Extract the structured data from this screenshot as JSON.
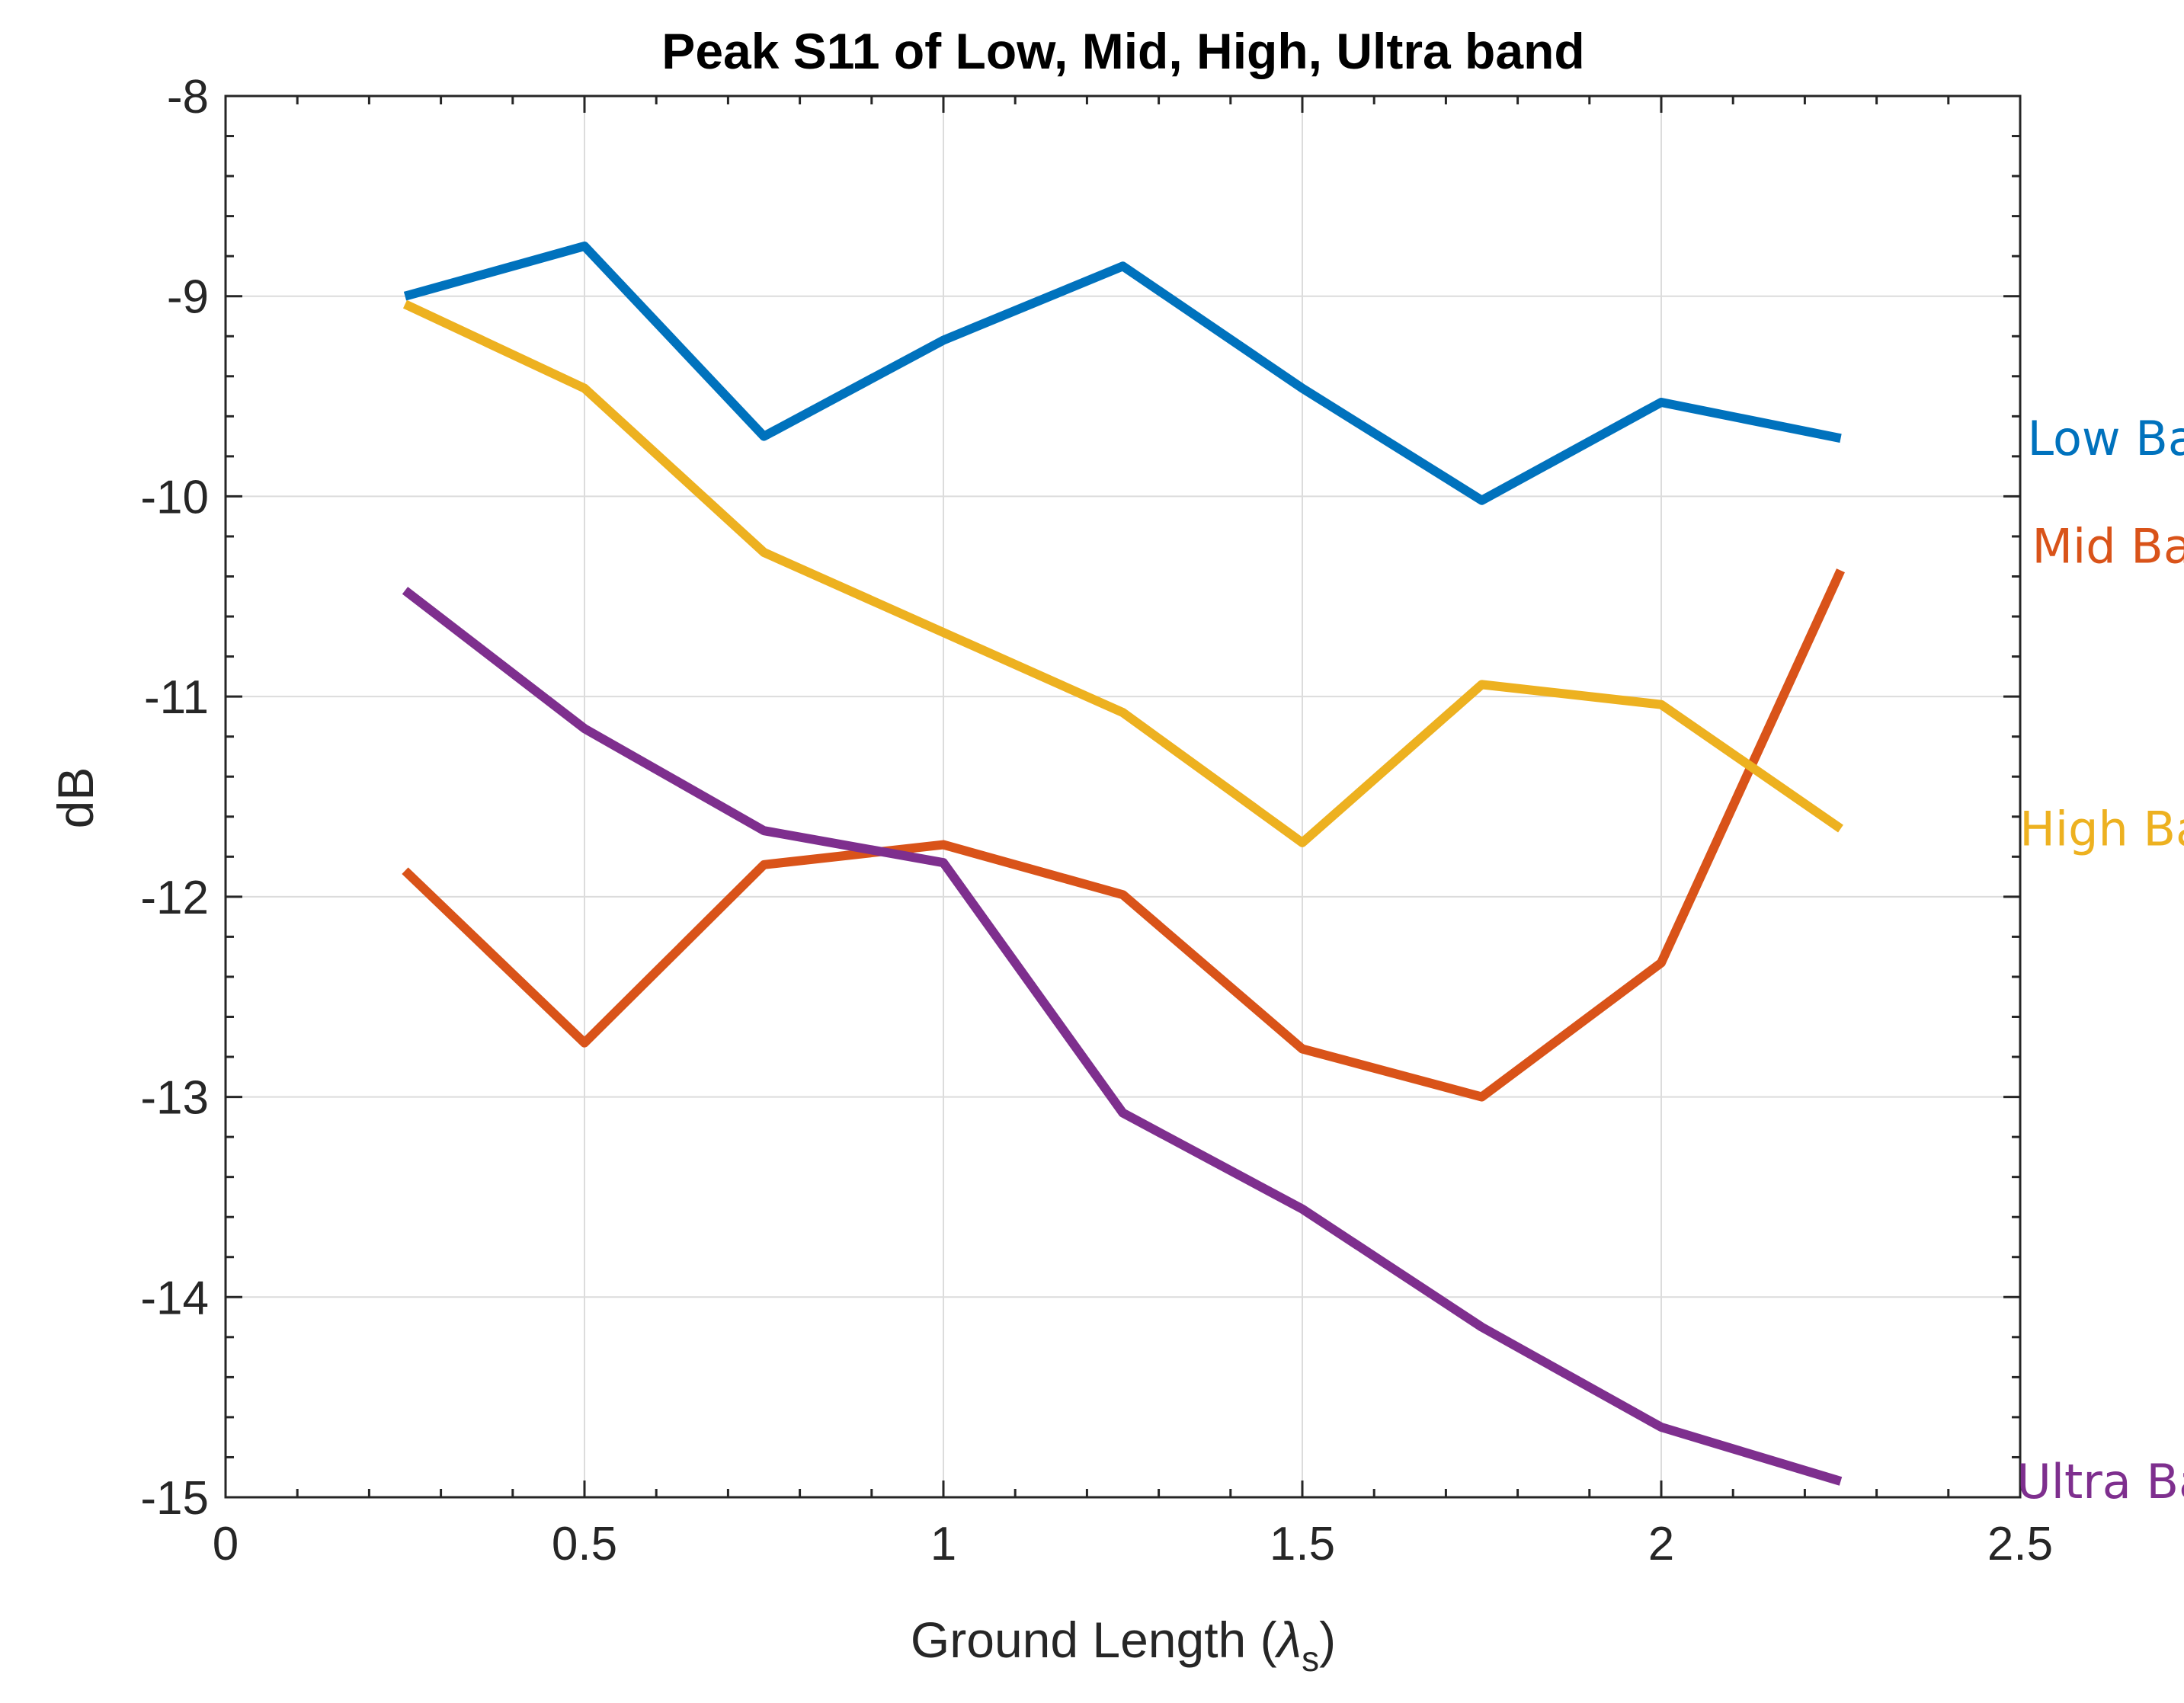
{
  "chart_data": {
    "type": "line",
    "title": "Peak S11 of Low, Mid, High, Ultra band",
    "xlabel_main": "Ground Length (",
    "xlabel_symbol": "λ",
    "xlabel_subscript": "s",
    "xlabel_close": ")",
    "ylabel": "dB",
    "xlim": [
      0,
      2.5
    ],
    "ylim": [
      -15,
      -8
    ],
    "grid": true,
    "x_ticks": [
      0,
      0.5,
      1,
      1.5,
      2,
      2.5
    ],
    "x_tick_labels": [
      "0",
      "0.5",
      "1",
      "1.5",
      "2",
      "2.5"
    ],
    "y_ticks": [
      -8,
      -9,
      -10,
      -11,
      -12,
      -13,
      -14,
      -15
    ],
    "y_tick_labels": [
      "-8",
      "-9",
      "-10",
      "-11",
      "-12",
      "-13",
      "-14",
      "-15"
    ],
    "x": [
      0.25,
      0.5,
      0.75,
      1.0,
      1.25,
      1.5,
      1.75,
      2.0,
      2.25
    ],
    "series": [
      {
        "name": "Low Band",
        "color": "#0072BD",
        "values": [
          -9.0,
          -8.75,
          -9.7,
          -9.22,
          -8.85,
          -9.46,
          -10.02,
          -9.53,
          -9.71
        ]
      },
      {
        "name": "Mid Band",
        "color": "#D95319",
        "values": [
          -11.87,
          -12.73,
          -11.84,
          -11.74,
          -11.99,
          -12.76,
          -13.0,
          -12.33,
          -10.37
        ]
      },
      {
        "name": "High Band",
        "color": "#EDB120",
        "values": [
          -9.04,
          -9.46,
          -10.28,
          -10.68,
          -11.08,
          -11.73,
          -10.94,
          -11.04,
          -11.66
        ]
      },
      {
        "name": "Ultra Band",
        "color": "#7E2F8E",
        "values": [
          -10.47,
          -11.16,
          -11.67,
          -11.83,
          -13.08,
          -13.56,
          -14.15,
          -14.65,
          -14.92
        ]
      }
    ]
  }
}
